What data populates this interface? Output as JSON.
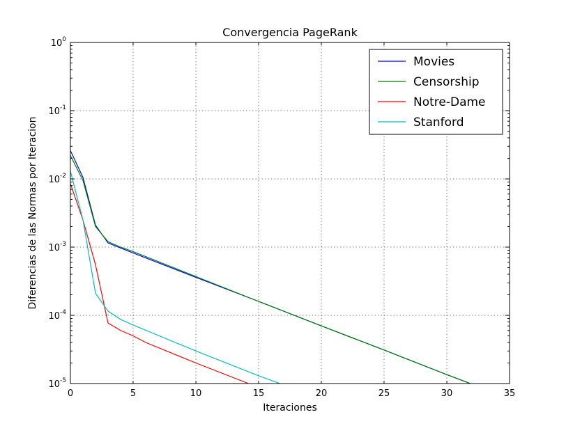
{
  "chart_data": {
    "type": "line",
    "title": "Convergencia PageRank",
    "xlabel": "Iteraciones",
    "ylabel": "Diferencias de las Normas por Iteracion",
    "xlim": [
      0,
      35
    ],
    "ylim": [
      1e-05,
      1
    ],
    "yscale": "log",
    "grid": true,
    "legend_position": "top-right",
    "x_ticks": [
      "0",
      "5",
      "10",
      "15",
      "20",
      "25",
      "30",
      "35"
    ],
    "y_ticks": [
      {
        "base": "10",
        "exp": "0"
      },
      {
        "base": "10",
        "exp": "-1"
      },
      {
        "base": "10",
        "exp": "-2"
      },
      {
        "base": "10",
        "exp": "-3"
      },
      {
        "base": "10",
        "exp": "-4"
      },
      {
        "base": "10",
        "exp": "-5"
      }
    ],
    "series": [
      {
        "name": "Movies",
        "color": "#0000ff",
        "x": [
          0,
          1,
          2,
          3,
          4,
          5,
          10,
          15,
          20,
          25,
          30,
          32
        ],
        "y": [
          0.026,
          0.0105,
          0.0021,
          0.00115,
          0.00097,
          0.00082,
          0.00036,
          0.00016,
          7e-05,
          3.1e-05,
          1.35e-05,
          9.8e-06
        ]
      },
      {
        "name": "Censorship",
        "color": "#008000",
        "x": [
          0,
          1,
          2,
          3,
          4,
          5,
          10,
          15,
          20,
          25,
          30,
          32
        ],
        "y": [
          0.022,
          0.0095,
          0.002,
          0.0012,
          0.001,
          0.00086,
          0.00037,
          0.00016,
          7e-05,
          3.1e-05,
          1.35e-05,
          9.8e-06
        ]
      },
      {
        "name": "Notre-Dame",
        "color": "#ff0000",
        "x": [
          0,
          1,
          2,
          3,
          4,
          5,
          6,
          10,
          14.2
        ],
        "y": [
          0.0085,
          0.0025,
          0.00055,
          7.7e-05,
          6e-05,
          5e-05,
          4e-05,
          2e-05,
          1e-05
        ]
      },
      {
        "name": "Stanford",
        "color": "#00bfbf",
        "x": [
          0,
          1,
          2,
          3,
          4,
          5,
          10,
          15,
          16.7
        ],
        "y": [
          0.013,
          0.0025,
          0.00021,
          0.000115,
          8.7e-05,
          7.2e-05,
          3e-05,
          1.3e-05,
          1e-05
        ]
      }
    ]
  }
}
